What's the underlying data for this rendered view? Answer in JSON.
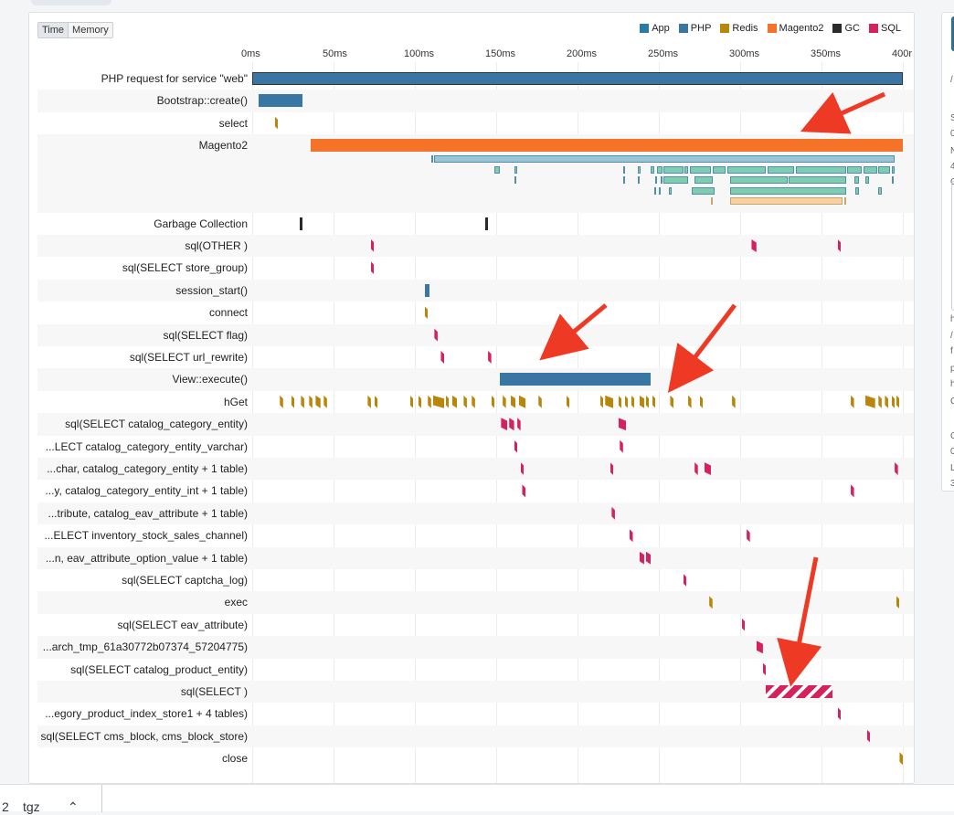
{
  "toggle": {
    "time_label": "Time",
    "memory_label": "Memory"
  },
  "legend": [
    {
      "label": "App",
      "color": "#2c7ba6"
    },
    {
      "label": "PHP",
      "color": "#3a76a4"
    },
    {
      "label": "Redis",
      "color": "#b8860b"
    },
    {
      "label": "Magento2",
      "color": "#f47329"
    },
    {
      "label": "GC",
      "color": "#2a2a2a"
    },
    {
      "label": "SQL",
      "color": "#d6225a"
    }
  ],
  "axis": {
    "ticks": [
      "0ms",
      "50ms",
      "100ms",
      "150ms",
      "200ms",
      "250ms",
      "300ms",
      "350ms",
      "400r"
    ]
  },
  "rows": [
    {
      "label": "PHP request for service \"web\"",
      "kind": "php",
      "spans": [
        [
          0,
          400
        ]
      ]
    },
    {
      "label": "Bootstrap::create()",
      "kind": "php",
      "spans": [
        [
          4,
          31
        ]
      ]
    },
    {
      "label": "select",
      "kind": "redis",
      "spans": [
        [
          14,
          16
        ]
      ]
    },
    {
      "label": "Magento2",
      "kind": "magento",
      "spans": [
        [
          36,
          400
        ]
      ]
    },
    {
      "label": "Garbage Collection",
      "kind": "gc",
      "spans": [
        [
          29,
          31
        ],
        [
          143,
          145
        ]
      ]
    },
    {
      "label": "sql(OTHER )",
      "kind": "sql",
      "spans": [
        [
          73,
          75
        ],
        [
          307,
          310
        ],
        [
          360,
          362
        ]
      ]
    },
    {
      "label": "sql(SELECT store_group)",
      "kind": "sql",
      "spans": [
        [
          73,
          75
        ]
      ]
    },
    {
      "label": "session_start()",
      "kind": "php",
      "spans": [
        [
          106,
          109
        ]
      ]
    },
    {
      "label": "connect",
      "kind": "redis",
      "spans": [
        [
          106,
          108
        ]
      ]
    },
    {
      "label": "sql(SELECT flag)",
      "kind": "sql",
      "spans": [
        [
          112,
          114
        ]
      ]
    },
    {
      "label": "sql(SELECT url_rewrite)",
      "kind": "sql",
      "spans": [
        [
          116,
          118
        ],
        [
          145,
          147
        ]
      ]
    },
    {
      "label": "View::execute()",
      "kind": "php",
      "spans": [
        [
          152,
          245
        ]
      ]
    },
    {
      "label": "hGet",
      "kind": "redis",
      "spans": [
        [
          17,
          19
        ],
        [
          24,
          26
        ],
        [
          30,
          32
        ],
        [
          35,
          37
        ],
        [
          39,
          42
        ],
        [
          44,
          46
        ],
        [
          71,
          73
        ],
        [
          75,
          77
        ],
        [
          97,
          99
        ],
        [
          102,
          104
        ],
        [
          108,
          110
        ],
        [
          111,
          118
        ],
        [
          119,
          121
        ],
        [
          123,
          126
        ],
        [
          130,
          132
        ],
        [
          135,
          137
        ],
        [
          147,
          149
        ],
        [
          154,
          156
        ],
        [
          159,
          162
        ],
        [
          164,
          168
        ],
        [
          176,
          178
        ],
        [
          193,
          195
        ],
        [
          214,
          216
        ],
        [
          217,
          222
        ],
        [
          225,
          227
        ],
        [
          229,
          231
        ],
        [
          233,
          235
        ],
        [
          238,
          241
        ],
        [
          242,
          244
        ],
        [
          246,
          248
        ],
        [
          257,
          259
        ],
        [
          268,
          270
        ],
        [
          275,
          277
        ],
        [
          295,
          297
        ],
        [
          368,
          370
        ],
        [
          377,
          383
        ],
        [
          385,
          387
        ],
        [
          389,
          391
        ],
        [
          393,
          395
        ],
        [
          396,
          398
        ]
      ]
    },
    {
      "label": "sql(SELECT catalog_category_entity)",
      "kind": "sql",
      "spans": [
        [
          153,
          157
        ],
        [
          158,
          161
        ],
        [
          163,
          165
        ],
        [
          225,
          230
        ]
      ]
    },
    {
      "label": "...LECT catalog_category_entity_varchar)",
      "kind": "sql",
      "spans": [
        [
          161,
          163
        ],
        [
          226,
          228
        ]
      ]
    },
    {
      "label": "...char, catalog_category_entity + 1 table)",
      "kind": "sql",
      "spans": [
        [
          165,
          167
        ],
        [
          220,
          222
        ],
        [
          272,
          274
        ],
        [
          278,
          282
        ],
        [
          395,
          397
        ]
      ]
    },
    {
      "label": "...y, catalog_category_entity_int + 1 table)",
      "kind": "sql",
      "spans": [
        [
          166,
          168
        ],
        [
          368,
          370
        ]
      ]
    },
    {
      "label": "...tribute, catalog_eav_attribute + 1 table)",
      "kind": "sql",
      "spans": [
        [
          221,
          223
        ]
      ]
    },
    {
      "label": "...ELECT inventory_stock_sales_channel)",
      "kind": "sql",
      "spans": [
        [
          232,
          234
        ],
        [
          304,
          306
        ]
      ]
    },
    {
      "label": "...n, eav_attribute_option_value + 1 table)",
      "kind": "sql",
      "spans": [
        [
          238,
          241
        ],
        [
          242,
          245
        ]
      ]
    },
    {
      "label": "sql(SELECT captcha_log)",
      "kind": "sql",
      "spans": [
        [
          265,
          267
        ]
      ]
    },
    {
      "label": "exec",
      "kind": "redis",
      "spans": [
        [
          281,
          283
        ],
        [
          396,
          398
        ]
      ]
    },
    {
      "label": "sql(SELECT eav_attribute)",
      "kind": "sql",
      "spans": [
        [
          301,
          303
        ]
      ]
    },
    {
      "label": "...arch_tmp_61a30772b07374_57204775)",
      "kind": "sql",
      "spans": [
        [
          310,
          314
        ]
      ]
    },
    {
      "label": "sql(SELECT catalog_product_entity)",
      "kind": "sql",
      "spans": [
        [
          314,
          316
        ]
      ]
    },
    {
      "label": "sql(SELECT )",
      "kind": "sql-hatch",
      "spans": [
        [
          316,
          357
        ]
      ]
    },
    {
      "label": "...egory_product_index_store1 + 4 tables)",
      "kind": "sql",
      "spans": [
        [
          360,
          362
        ]
      ]
    },
    {
      "label": "sql(SELECT cms_block, cms_block_store)",
      "kind": "sql",
      "spans": [
        [
          378,
          380
        ]
      ]
    },
    {
      "label": "close",
      "kind": "redis",
      "spans": [
        [
          398,
          400
        ]
      ]
    }
  ],
  "magento_children": [
    {
      "lane": 0,
      "kind": "light-blue",
      "spans": [
        [
          110,
          111
        ],
        [
          112,
          395
        ]
      ]
    },
    {
      "lane": 1,
      "kind": "teal",
      "spans": [
        [
          149,
          152
        ],
        [
          161,
          163
        ],
        [
          228,
          229
        ],
        [
          237,
          239
        ],
        [
          245,
          247
        ],
        [
          249,
          252
        ],
        [
          253,
          265
        ],
        [
          266,
          268
        ],
        [
          269,
          282
        ],
        [
          283,
          291
        ],
        [
          292,
          316
        ],
        [
          317,
          333
        ],
        [
          334,
          365
        ],
        [
          366,
          375
        ],
        [
          376,
          384
        ],
        [
          385,
          392
        ],
        [
          393,
          395
        ]
      ]
    },
    {
      "lane": 2,
      "kind": "teal",
      "spans": [
        [
          161,
          162
        ],
        [
          228,
          229
        ],
        [
          237,
          238
        ],
        [
          248,
          249
        ],
        [
          251,
          252
        ],
        [
          253,
          268
        ],
        [
          272,
          283
        ],
        [
          294,
          329
        ],
        [
          330,
          365
        ],
        [
          370,
          373
        ],
        [
          377,
          379
        ],
        [
          393,
          394
        ]
      ]
    },
    {
      "lane": 3,
      "kind": "teal",
      "spans": [
        [
          247,
          248
        ],
        [
          250,
          251
        ],
        [
          256,
          258
        ],
        [
          270,
          284
        ],
        [
          294,
          365
        ],
        [
          371,
          373
        ],
        [
          385,
          387
        ]
      ]
    },
    {
      "lane": 4,
      "kind": "peach",
      "spans": [
        [
          282,
          283
        ],
        [
          294,
          363
        ],
        [
          364,
          365
        ]
      ]
    }
  ],
  "side_panel": {
    "lines": [
      "/",
      "S",
      "0",
      "N",
      "4",
      "C",
      "h",
      "/",
      "f",
      "p",
      "h",
      "C",
      "C",
      "0",
      "L",
      "3"
    ]
  },
  "bottom_bar": {
    "left_text": "2",
    "tag_text": "tgz",
    "caret": "⌃"
  }
}
